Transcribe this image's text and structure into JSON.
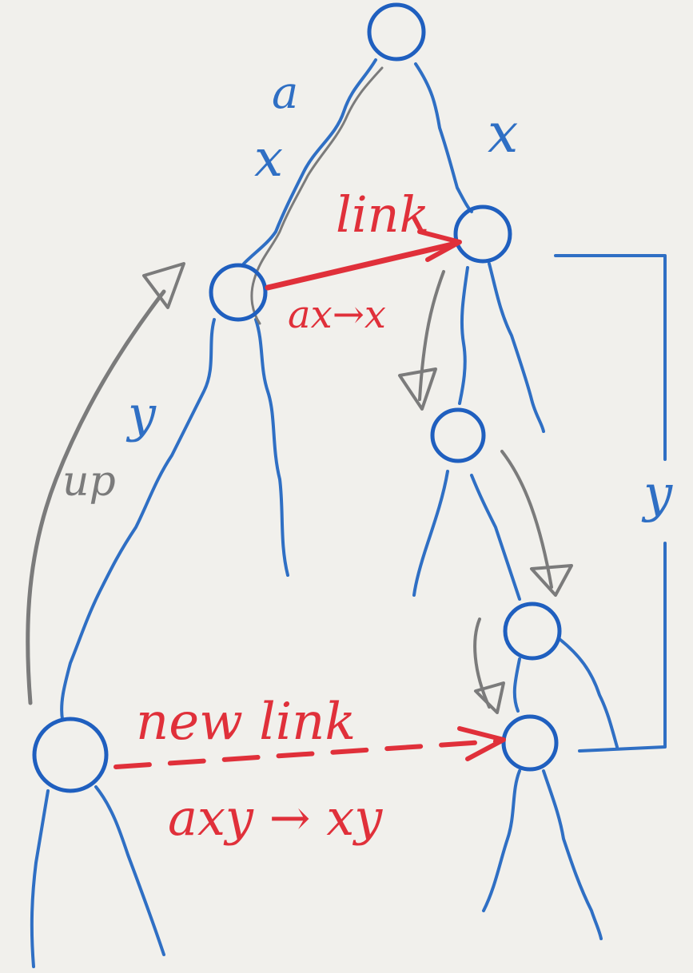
{
  "labels": {
    "edge_top_left": "a",
    "edge_top_left_mark": "x",
    "edge_top_right_mark": "x",
    "link": "link",
    "link_rule": "ax→x",
    "left_subtree_label": "y",
    "up": "up",
    "right_bracket_label": "y",
    "new_link": "new link",
    "new_link_rule": "axy → xy"
  },
  "colors": {
    "tree": "#2f6fc4",
    "link": "#e0303a",
    "pencil": "#7b7b7b",
    "paper": "#f1f0ec"
  }
}
